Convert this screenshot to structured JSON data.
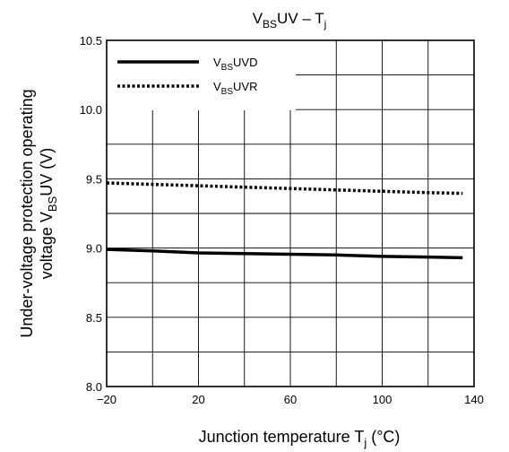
{
  "chart_data": {
    "type": "line",
    "title": {
      "main": "V",
      "sub": "BS",
      "rest": "UV – T",
      "sub2": "j"
    },
    "xlabel": {
      "main": "Junction temperature    T",
      "sub": "j",
      "rest": "    (°C)"
    },
    "ylabel": {
      "line1": "Under-voltage protection operating",
      "line2_main": "voltage    V",
      "line2_sub": "BS",
      "line2_rest": "UV    (V)"
    },
    "xlim": [
      -20,
      140
    ],
    "ylim": [
      8.0,
      10.5
    ],
    "x_tick_labels": [
      "−20",
      "20",
      "60",
      "100",
      "140"
    ],
    "x_tick_values": [
      -20,
      20,
      60,
      100,
      140
    ],
    "y_tick_labels": [
      "8.0",
      "8.5",
      "9.0",
      "9.5",
      "10.0",
      "10.5"
    ],
    "y_tick_values": [
      8.0,
      8.5,
      9.0,
      9.5,
      10.0,
      10.5
    ],
    "x_grid_values": [
      0,
      20,
      40,
      60,
      80,
      100,
      120
    ],
    "y_grid_values": [
      8.25,
      8.5,
      8.75,
      9.0,
      9.25,
      9.5,
      9.75,
      10.0,
      10.25
    ],
    "grid": true,
    "legend_position": "top-left",
    "series": [
      {
        "name_main": "V",
        "name_sub": "BS",
        "name_rest": "UVD",
        "style": "solid",
        "color": "#000000",
        "x": [
          -20,
          0,
          20,
          40,
          60,
          80,
          100,
          120,
          135
        ],
        "y": [
          8.99,
          8.98,
          8.965,
          8.96,
          8.955,
          8.95,
          8.94,
          8.935,
          8.93
        ]
      },
      {
        "name_main": "V",
        "name_sub": "BS",
        "name_rest": "UVR",
        "style": "dotted",
        "color": "#000000",
        "x": [
          -20,
          0,
          20,
          40,
          60,
          80,
          100,
          120,
          135
        ],
        "y": [
          9.47,
          9.46,
          9.45,
          9.44,
          9.43,
          9.42,
          9.41,
          9.4,
          9.395
        ]
      }
    ]
  }
}
